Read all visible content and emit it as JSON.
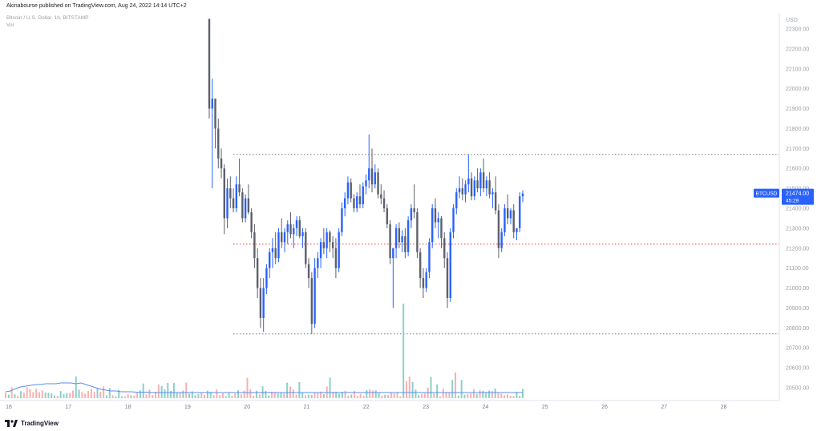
{
  "header": {
    "published": "Akinabourse published on TradingView.com, Aug 24, 2022 14:14 UTC+2",
    "symbol_line": "Bitcoin / U.S. Dollar, 1h, BITSTAMP",
    "vol_label": "Vol"
  },
  "footer": {
    "brand": "TradingView"
  },
  "price_tag": {
    "symbol": "BTCUSD",
    "price": "21474.00",
    "countdown": "45:29"
  },
  "colors": {
    "up": "#2962ff",
    "down": "#5d606b",
    "vol_up": "#80cbc4",
    "vol_down": "#f7a9a7",
    "ma": "#5b8def",
    "level": "#787b86",
    "midlevel": "#e53935",
    "tag": "#2962ff"
  },
  "chart_data": {
    "type": "candlestick",
    "title": "Bitcoin / U.S. Dollar, 1h, BITSTAMP",
    "currency_label": "USD",
    "y_ticks": [
      20500,
      20600,
      20700,
      20800,
      20900,
      21000,
      21100,
      21200,
      21300,
      21400,
      21500,
      21600,
      21700,
      21800,
      21900,
      22000,
      22100,
      22200,
      22300
    ],
    "x_ticks": [
      "16",
      "17",
      "18",
      "19",
      "20",
      "21",
      "22",
      "23",
      "24",
      "25",
      "26",
      "27",
      "28"
    ],
    "levels": {
      "resistance": 21670,
      "middle": 21220,
      "support": 20770
    },
    "last_price": 21474,
    "candles": [
      {
        "o": 22350,
        "h": 22350,
        "l": 21850,
        "c": 21900
      },
      {
        "o": 21900,
        "h": 22050,
        "l": 21500,
        "c": 21950
      },
      {
        "o": 21950,
        "h": 21950,
        "l": 21700,
        "c": 21800
      },
      {
        "o": 21800,
        "h": 21850,
        "l": 21600,
        "c": 21650
      },
      {
        "o": 21650,
        "h": 21700,
        "l": 21550,
        "c": 21600
      },
      {
        "o": 21600,
        "h": 21620,
        "l": 21270,
        "c": 21350
      },
      {
        "o": 21350,
        "h": 21550,
        "l": 21300,
        "c": 21500
      },
      {
        "o": 21500,
        "h": 21560,
        "l": 21400,
        "c": 21450
      },
      {
        "o": 21450,
        "h": 21500,
        "l": 21380,
        "c": 21400
      },
      {
        "o": 21400,
        "h": 21560,
        "l": 21380,
        "c": 21520
      },
      {
        "o": 21520,
        "h": 21650,
        "l": 21460,
        "c": 21480
      },
      {
        "o": 21480,
        "h": 21500,
        "l": 21330,
        "c": 21350
      },
      {
        "o": 21350,
        "h": 21470,
        "l": 21330,
        "c": 21450
      },
      {
        "o": 21450,
        "h": 21520,
        "l": 21370,
        "c": 21380
      },
      {
        "o": 21380,
        "h": 21400,
        "l": 21250,
        "c": 21280
      },
      {
        "o": 21280,
        "h": 21320,
        "l": 21100,
        "c": 21150
      },
      {
        "o": 21150,
        "h": 21200,
        "l": 20950,
        "c": 21000
      },
      {
        "o": 21000,
        "h": 21050,
        "l": 20800,
        "c": 20850
      },
      {
        "o": 20850,
        "h": 21050,
        "l": 20780,
        "c": 21000
      },
      {
        "o": 21000,
        "h": 21120,
        "l": 20970,
        "c": 21100
      },
      {
        "o": 21100,
        "h": 21200,
        "l": 21050,
        "c": 21180
      },
      {
        "o": 21180,
        "h": 21250,
        "l": 21100,
        "c": 21200
      },
      {
        "o": 21200,
        "h": 21280,
        "l": 21120,
        "c": 21150
      },
      {
        "o": 21150,
        "h": 21300,
        "l": 21130,
        "c": 21280
      },
      {
        "o": 21280,
        "h": 21350,
        "l": 21200,
        "c": 21230
      },
      {
        "o": 21230,
        "h": 21300,
        "l": 21180,
        "c": 21280
      },
      {
        "o": 21280,
        "h": 21340,
        "l": 21220,
        "c": 21320
      },
      {
        "o": 21320,
        "h": 21380,
        "l": 21250,
        "c": 21270
      },
      {
        "o": 21270,
        "h": 21320,
        "l": 21200,
        "c": 21300
      },
      {
        "o": 21300,
        "h": 21360,
        "l": 21260,
        "c": 21340
      },
      {
        "o": 21340,
        "h": 21360,
        "l": 21250,
        "c": 21260
      },
      {
        "o": 21260,
        "h": 21300,
        "l": 21200,
        "c": 21280
      },
      {
        "o": 21280,
        "h": 21300,
        "l": 21100,
        "c": 21120
      },
      {
        "o": 21120,
        "h": 21150,
        "l": 21000,
        "c": 21050
      },
      {
        "o": 21050,
        "h": 21080,
        "l": 20770,
        "c": 20820
      },
      {
        "o": 20820,
        "h": 21150,
        "l": 20800,
        "c": 21100
      },
      {
        "o": 21100,
        "h": 21180,
        "l": 21050,
        "c": 21150
      },
      {
        "o": 21150,
        "h": 21250,
        "l": 21100,
        "c": 21230
      },
      {
        "o": 21230,
        "h": 21300,
        "l": 21170,
        "c": 21200
      },
      {
        "o": 21200,
        "h": 21300,
        "l": 21150,
        "c": 21280
      },
      {
        "o": 21280,
        "h": 21290,
        "l": 21180,
        "c": 21230
      },
      {
        "o": 21230,
        "h": 21260,
        "l": 21150,
        "c": 21200
      },
      {
        "o": 21200,
        "h": 21250,
        "l": 21050,
        "c": 21100
      },
      {
        "o": 21100,
        "h": 21300,
        "l": 21080,
        "c": 21280
      },
      {
        "o": 21280,
        "h": 21430,
        "l": 21260,
        "c": 21400
      },
      {
        "o": 21400,
        "h": 21480,
        "l": 21360,
        "c": 21450
      },
      {
        "o": 21450,
        "h": 21560,
        "l": 21420,
        "c": 21530
      },
      {
        "o": 21530,
        "h": 21550,
        "l": 21430,
        "c": 21450
      },
      {
        "o": 21450,
        "h": 21470,
        "l": 21380,
        "c": 21400
      },
      {
        "o": 21400,
        "h": 21480,
        "l": 21380,
        "c": 21460
      },
      {
        "o": 21460,
        "h": 21520,
        "l": 21400,
        "c": 21420
      },
      {
        "o": 21420,
        "h": 21530,
        "l": 21400,
        "c": 21510
      },
      {
        "o": 21510,
        "h": 21570,
        "l": 21470,
        "c": 21540
      },
      {
        "o": 21540,
        "h": 21770,
        "l": 21500,
        "c": 21600
      },
      {
        "o": 21600,
        "h": 21700,
        "l": 21480,
        "c": 21520
      },
      {
        "o": 21520,
        "h": 21620,
        "l": 21500,
        "c": 21580
      },
      {
        "o": 21580,
        "h": 21600,
        "l": 21450,
        "c": 21470
      },
      {
        "o": 21470,
        "h": 21520,
        "l": 21420,
        "c": 21450
      },
      {
        "o": 21450,
        "h": 21490,
        "l": 21380,
        "c": 21400
      },
      {
        "o": 21400,
        "h": 21420,
        "l": 21300,
        "c": 21320
      },
      {
        "o": 21320,
        "h": 21340,
        "l": 21120,
        "c": 21150
      },
      {
        "o": 21150,
        "h": 21200,
        "l": 20900,
        "c": 21200
      },
      {
        "o": 21200,
        "h": 21320,
        "l": 21150,
        "c": 21300
      },
      {
        "o": 21300,
        "h": 21330,
        "l": 21200,
        "c": 21230
      },
      {
        "o": 21230,
        "h": 21290,
        "l": 21180,
        "c": 21260
      },
      {
        "o": 21260,
        "h": 21300,
        "l": 21150,
        "c": 21180
      },
      {
        "o": 21180,
        "h": 21360,
        "l": 21160,
        "c": 21340
      },
      {
        "o": 21340,
        "h": 21420,
        "l": 21300,
        "c": 21400
      },
      {
        "o": 21400,
        "h": 21520,
        "l": 21350,
        "c": 21380
      },
      {
        "o": 21380,
        "h": 21400,
        "l": 21150,
        "c": 21180
      },
      {
        "o": 21180,
        "h": 21200,
        "l": 21000,
        "c": 21050
      },
      {
        "o": 21050,
        "h": 21100,
        "l": 20950,
        "c": 21000
      },
      {
        "o": 21000,
        "h": 21100,
        "l": 20980,
        "c": 21080
      },
      {
        "o": 21080,
        "h": 21250,
        "l": 21050,
        "c": 21230
      },
      {
        "o": 21230,
        "h": 21420,
        "l": 21200,
        "c": 21400
      },
      {
        "o": 21400,
        "h": 21450,
        "l": 21300,
        "c": 21330
      },
      {
        "o": 21330,
        "h": 21380,
        "l": 21250,
        "c": 21350
      },
      {
        "o": 21350,
        "h": 21360,
        "l": 21200,
        "c": 21250
      },
      {
        "o": 21250,
        "h": 21280,
        "l": 21100,
        "c": 21150
      },
      {
        "o": 21150,
        "h": 21180,
        "l": 20900,
        "c": 20950
      },
      {
        "o": 20950,
        "h": 21300,
        "l": 20930,
        "c": 21280
      },
      {
        "o": 21280,
        "h": 21420,
        "l": 21250,
        "c": 21400
      },
      {
        "o": 21400,
        "h": 21500,
        "l": 21370,
        "c": 21480
      },
      {
        "o": 21480,
        "h": 21560,
        "l": 21450,
        "c": 21500
      },
      {
        "o": 21500,
        "h": 21550,
        "l": 21440,
        "c": 21470
      },
      {
        "o": 21470,
        "h": 21540,
        "l": 21430,
        "c": 21520
      },
      {
        "o": 21520,
        "h": 21670,
        "l": 21480,
        "c": 21550
      },
      {
        "o": 21550,
        "h": 21580,
        "l": 21440,
        "c": 21460
      },
      {
        "o": 21460,
        "h": 21560,
        "l": 21440,
        "c": 21540
      },
      {
        "o": 21540,
        "h": 21600,
        "l": 21480,
        "c": 21500
      },
      {
        "o": 21500,
        "h": 21600,
        "l": 21460,
        "c": 21580
      },
      {
        "o": 21580,
        "h": 21650,
        "l": 21480,
        "c": 21500
      },
      {
        "o": 21500,
        "h": 21560,
        "l": 21460,
        "c": 21540
      },
      {
        "o": 21540,
        "h": 21580,
        "l": 21450,
        "c": 21470
      },
      {
        "o": 21470,
        "h": 21500,
        "l": 21400,
        "c": 21480
      },
      {
        "o": 21480,
        "h": 21560,
        "l": 21370,
        "c": 21390
      },
      {
        "o": 21390,
        "h": 21420,
        "l": 21150,
        "c": 21200
      },
      {
        "o": 21200,
        "h": 21300,
        "l": 21180,
        "c": 21280
      },
      {
        "o": 21280,
        "h": 21420,
        "l": 21260,
        "c": 21400
      },
      {
        "o": 21400,
        "h": 21470,
        "l": 21320,
        "c": 21350
      },
      {
        "o": 21350,
        "h": 21400,
        "l": 21320,
        "c": 21390
      },
      {
        "o": 21390,
        "h": 21420,
        "l": 21250,
        "c": 21280
      },
      {
        "o": 21280,
        "h": 21300,
        "l": 21240,
        "c": 21300
      },
      {
        "o": 21300,
        "h": 21480,
        "l": 21280,
        "c": 21460
      },
      {
        "o": 21460,
        "h": 21490,
        "l": 21430,
        "c": 21474
      }
    ],
    "volume_ma": [
      0.4,
      0.5,
      0.8,
      1.0,
      1.1,
      1.2,
      1.3,
      1.3,
      1.4,
      1.4,
      1.4,
      1.5,
      1.5,
      1.5,
      1.4,
      1.5,
      1.3,
      1.1,
      0.9,
      0.7,
      0.6,
      0.5,
      0.5,
      0.4,
      0.4,
      0.4,
      0.35,
      0.35,
      0.35,
      0.3,
      0.3,
      0.3,
      0.3,
      0.3,
      0.3,
      0.3,
      0.3,
      0.3,
      0.3,
      0.3,
      0.3,
      0.3,
      0.3,
      0.3,
      0.3,
      0.3,
      0.3,
      0.3,
      0.3,
      0.3,
      0.3,
      0.3,
      0.3,
      0.3,
      0.3,
      0.3,
      0.3,
      0.3,
      0.3,
      0.3,
      0.3,
      0.3,
      0.3,
      0.3,
      0.3,
      0.3,
      0.3,
      0.3,
      0.3,
      0.3,
      0.3,
      0.3,
      0.3,
      0.3,
      0.3,
      0.3,
      0.3,
      0.3,
      0.3,
      0.3,
      0.3,
      0.3,
      0.3,
      0.3,
      0.3,
      0.3,
      0.3,
      0.3,
      0.3,
      0.3,
      0.3,
      0.3,
      0.3,
      0.3,
      0.3,
      0.3,
      0.3,
      0.3,
      0.3,
      0.3,
      0.3,
      0.3,
      0.3,
      0.3
    ]
  }
}
